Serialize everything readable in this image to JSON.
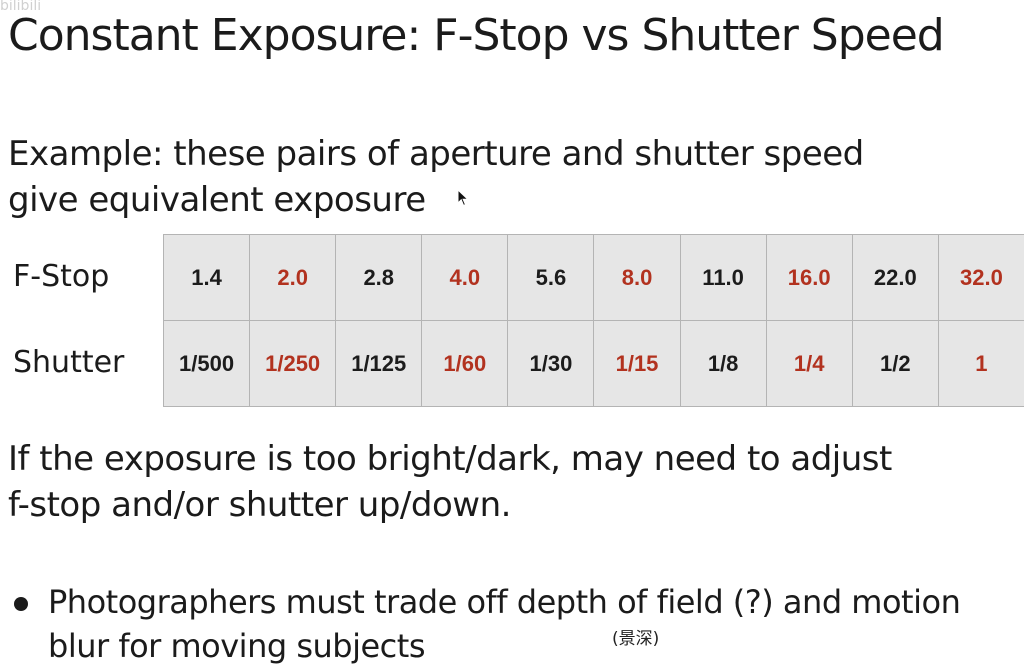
{
  "watermark": "bilibili",
  "slide": {
    "title": "Constant Exposure: F-Stop vs Shutter Speed",
    "example_line1": "Example: these pairs of aperture and shutter speed",
    "example_line2": "give equivalent exposure",
    "table": {
      "row_labels": [
        "F-Stop",
        "Shutter"
      ],
      "fstop": [
        "1.4",
        "2.0",
        "2.8",
        "4.0",
        "5.6",
        "8.0",
        "11.0",
        "16.0",
        "22.0",
        "32.0"
      ],
      "shutter": [
        "1/500",
        "1/250",
        "1/125",
        "1/60",
        "1/30",
        "1/15",
        "1/8",
        "1/4",
        "1/2",
        "1"
      ],
      "value_colors": {
        "dark": "#1c1c1c",
        "red": "#b2321f"
      }
    },
    "adjust_line1": "If the exposure is too bright/dark, may need to adjust",
    "adjust_line2": "f-stop and/or shutter up/down.",
    "bullet_line1": "Photographers must trade off depth of field (?) and motion",
    "bullet_line2": "blur for moving subjects",
    "annotation": "(景深)"
  },
  "icons": {
    "cursor": "mouse-pointer-icon",
    "bullet": "bullet-dot-icon"
  }
}
